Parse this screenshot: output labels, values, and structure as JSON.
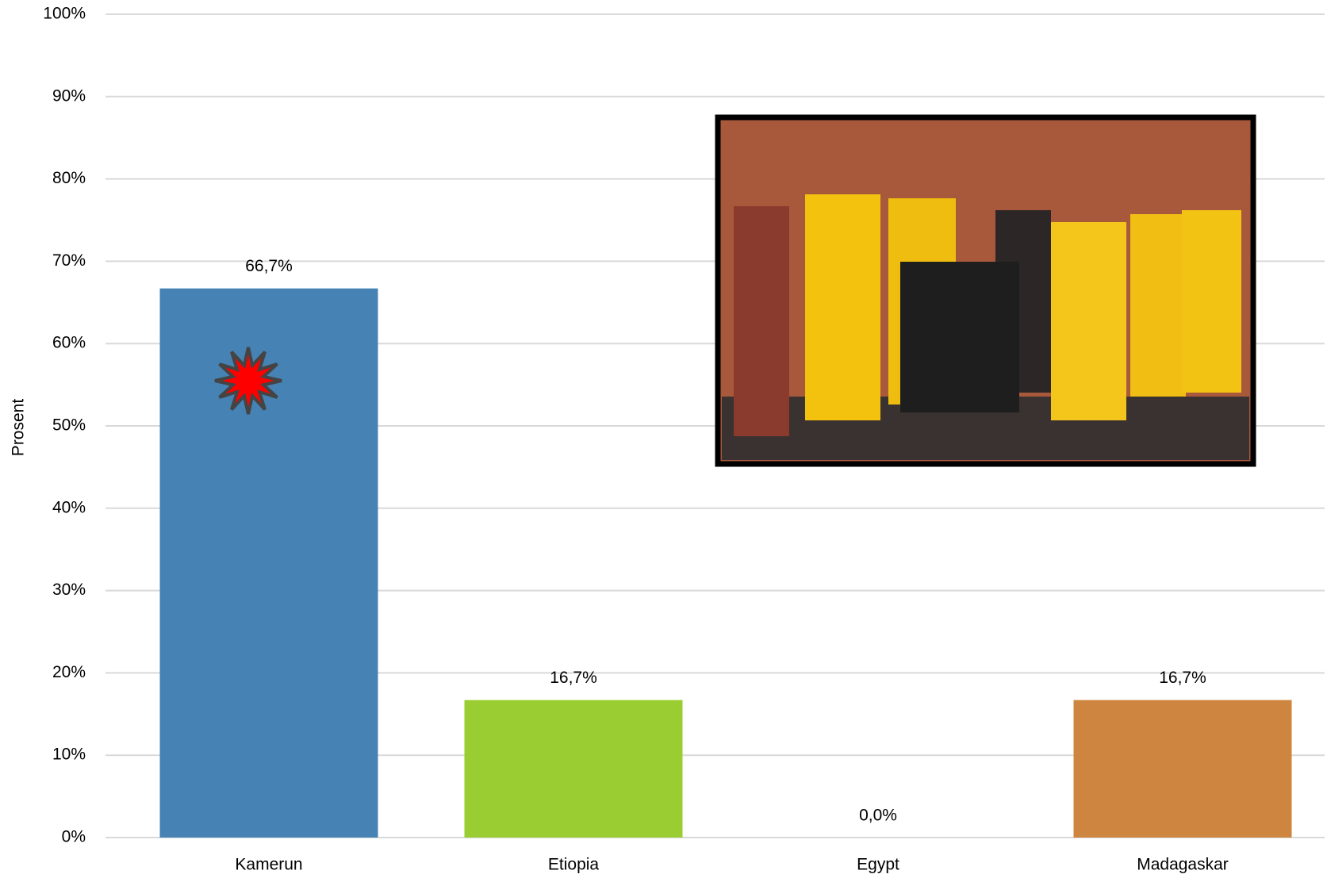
{
  "chart_data": {
    "type": "bar",
    "y_label": "Prosent",
    "categories": [
      "Kamerun",
      "Etiopia",
      "Egypt",
      "Madagaskar"
    ],
    "values": [
      66.7,
      16.7,
      0,
      16.7
    ],
    "value_labels": [
      "66,7%",
      "16,7%",
      "0,0%",
      "16,7%"
    ],
    "colors": [
      "#4682b4",
      "#9acd32",
      "#8e8e8e",
      "#cd853f"
    ],
    "ylim": [
      0,
      100
    ],
    "yticks": [
      {
        "value": 0,
        "label": "0%"
      },
      {
        "value": 10,
        "label": "10%"
      },
      {
        "value": 20,
        "label": "20%"
      },
      {
        "value": 30,
        "label": "30%"
      },
      {
        "value": 40,
        "label": "40%"
      },
      {
        "value": 50,
        "label": "50%"
      },
      {
        "value": 60,
        "label": "60%"
      },
      {
        "value": 70,
        "label": "70%"
      },
      {
        "value": 80,
        "label": "80%"
      },
      {
        "value": 90,
        "label": "90%"
      },
      {
        "value": 100,
        "label": "100%"
      }
    ],
    "grid": true
  }
}
